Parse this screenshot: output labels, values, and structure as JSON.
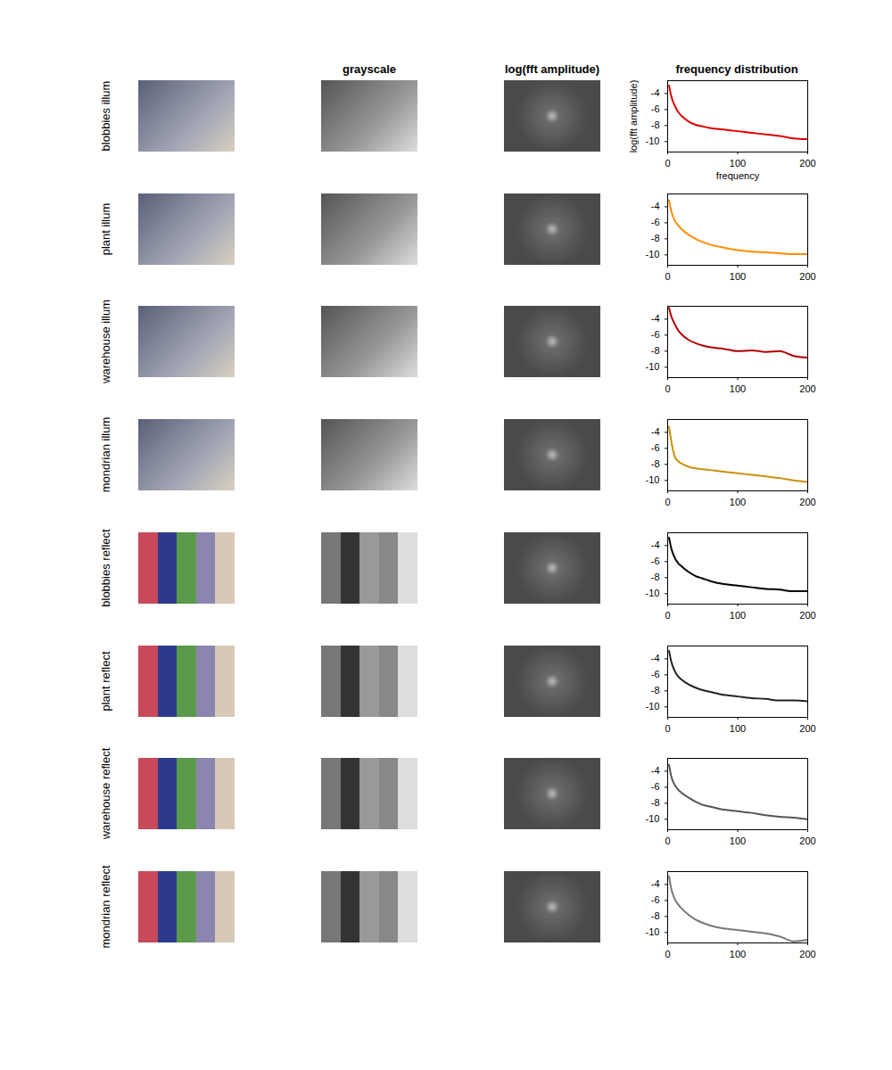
{
  "column_headers": [
    "grayscale",
    "log(fft amplitude)",
    "frequency distribution"
  ],
  "chart_data": [
    {
      "type": "line",
      "title": "blobbies illum",
      "color": "#e00000",
      "xlabel": "frequency",
      "ylabel": "log(fft amplitude)",
      "x": [
        2,
        5,
        10,
        15,
        20,
        30,
        40,
        50,
        60,
        80,
        100,
        120,
        140,
        160,
        180,
        200
      ],
      "values": [
        -3.0,
        -4.3,
        -5.5,
        -6.3,
        -6.8,
        -7.5,
        -7.9,
        -8.1,
        -8.3,
        -8.5,
        -8.7,
        -8.9,
        -9.1,
        -9.3,
        -9.6,
        -9.7
      ],
      "xlim": [
        0,
        200
      ],
      "ylim": [
        -11.3,
        -2.4
      ],
      "xticks": [
        0,
        100,
        200
      ],
      "yticks": [
        -10,
        -8,
        -6,
        -4
      ]
    },
    {
      "type": "line",
      "title": "plant illum",
      "color": "#ff8c00",
      "x": [
        2,
        5,
        10,
        15,
        20,
        30,
        40,
        50,
        60,
        80,
        100,
        120,
        140,
        160,
        180,
        200
      ],
      "values": [
        -3.2,
        -4.5,
        -5.7,
        -6.3,
        -6.8,
        -7.5,
        -8.0,
        -8.4,
        -8.7,
        -9.1,
        -9.4,
        -9.6,
        -9.7,
        -9.8,
        -9.9,
        -9.9
      ],
      "xlim": [
        0,
        200
      ],
      "ylim": [
        -11.3,
        -2.4
      ],
      "xticks": [
        0,
        100,
        200
      ],
      "yticks": [
        -10,
        -8,
        -6,
        -4
      ]
    },
    {
      "type": "line",
      "title": "warehouse illum",
      "color": "#b00000",
      "x": [
        2,
        5,
        10,
        15,
        20,
        30,
        40,
        50,
        60,
        80,
        100,
        120,
        140,
        160,
        180,
        200
      ],
      "values": [
        -2.6,
        -3.6,
        -4.6,
        -5.4,
        -5.9,
        -6.6,
        -7.0,
        -7.3,
        -7.5,
        -7.7,
        -8.0,
        -7.9,
        -8.1,
        -8.0,
        -8.6,
        -8.8
      ],
      "xlim": [
        0,
        200
      ],
      "ylim": [
        -11.3,
        -2.4
      ],
      "xticks": [
        0,
        100,
        200
      ],
      "yticks": [
        -10,
        -8,
        -6,
        -4
      ]
    },
    {
      "type": "line",
      "title": "mondrian illum",
      "color": "#c8900a",
      "x": [
        2,
        5,
        10,
        15,
        20,
        30,
        40,
        50,
        60,
        80,
        100,
        120,
        140,
        160,
        180,
        200
      ],
      "values": [
        -3.3,
        -5.0,
        -7.0,
        -7.6,
        -7.9,
        -8.3,
        -8.5,
        -8.6,
        -8.7,
        -8.9,
        -9.1,
        -9.3,
        -9.5,
        -9.7,
        -10.0,
        -10.2
      ],
      "xlim": [
        0,
        200
      ],
      "ylim": [
        -11.3,
        -2.4
      ],
      "xticks": [
        0,
        100,
        200
      ],
      "yticks": [
        -10,
        -8,
        -6,
        -4
      ]
    },
    {
      "type": "line",
      "title": "blobbies reflect",
      "color": "#000000",
      "x": [
        2,
        5,
        10,
        15,
        20,
        30,
        40,
        50,
        60,
        80,
        100,
        120,
        140,
        160,
        180,
        200
      ],
      "values": [
        -3.0,
        -4.3,
        -5.5,
        -6.2,
        -6.6,
        -7.3,
        -7.8,
        -8.1,
        -8.4,
        -8.8,
        -9.0,
        -9.2,
        -9.4,
        -9.5,
        -9.7,
        -9.7
      ],
      "xlim": [
        0,
        200
      ],
      "ylim": [
        -11.3,
        -2.4
      ],
      "xticks": [
        0,
        100,
        200
      ],
      "yticks": [
        -10,
        -8,
        -6,
        -4
      ]
    },
    {
      "type": "line",
      "title": "plant reflect",
      "color": "#222222",
      "x": [
        2,
        5,
        10,
        15,
        20,
        30,
        40,
        50,
        60,
        80,
        100,
        120,
        140,
        160,
        180,
        200
      ],
      "values": [
        -3.0,
        -4.3,
        -5.5,
        -6.2,
        -6.6,
        -7.2,
        -7.6,
        -7.9,
        -8.1,
        -8.5,
        -8.7,
        -8.9,
        -9.0,
        -9.2,
        -9.2,
        -9.3
      ],
      "xlim": [
        0,
        200
      ],
      "ylim": [
        -11.3,
        -2.4
      ],
      "xticks": [
        0,
        100,
        200
      ],
      "yticks": [
        -10,
        -8,
        -6,
        -4
      ]
    },
    {
      "type": "line",
      "title": "warehouse reflect",
      "color": "#555555",
      "x": [
        2,
        5,
        10,
        15,
        20,
        30,
        40,
        50,
        60,
        80,
        100,
        120,
        140,
        160,
        180,
        200
      ],
      "values": [
        -3.2,
        -4.6,
        -5.7,
        -6.3,
        -6.7,
        -7.3,
        -7.8,
        -8.2,
        -8.4,
        -8.8,
        -9.0,
        -9.2,
        -9.5,
        -9.7,
        -9.8,
        -10.0
      ],
      "xlim": [
        0,
        200
      ],
      "ylim": [
        -11.3,
        -2.4
      ],
      "xticks": [
        0,
        100,
        200
      ],
      "yticks": [
        -10,
        -8,
        -6,
        -4
      ]
    },
    {
      "type": "line",
      "title": "mondrian reflect",
      "color": "#777777",
      "x": [
        2,
        5,
        10,
        15,
        20,
        30,
        40,
        50,
        60,
        80,
        100,
        120,
        140,
        160,
        180,
        200
      ],
      "values": [
        -3.0,
        -4.5,
        -5.8,
        -6.5,
        -7.0,
        -7.8,
        -8.4,
        -8.8,
        -9.1,
        -9.5,
        -9.7,
        -9.9,
        -10.1,
        -10.5,
        -11.1,
        -10.9
      ],
      "xlim": [
        0,
        200
      ],
      "ylim": [
        -11.3,
        -2.4
      ],
      "xticks": [
        0,
        100,
        200
      ],
      "yticks": [
        -10,
        -8,
        -6,
        -4
      ]
    }
  ]
}
